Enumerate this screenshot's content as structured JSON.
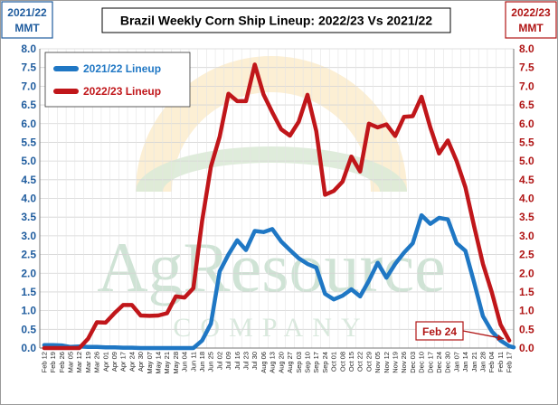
{
  "chart_data": {
    "type": "line",
    "title": "Brazil Weekly Corn Ship Lineup: 2022/23 Vs 2021/22",
    "left_axis_unit": [
      "2021/22",
      "MMT"
    ],
    "right_axis_unit": [
      "2022/23",
      "MMT"
    ],
    "ylim": [
      0,
      8
    ],
    "yticks": [
      "0.0",
      "0.5",
      "1.0",
      "1.5",
      "2.0",
      "2.5",
      "3.0",
      "3.5",
      "4.0",
      "4.5",
      "5.0",
      "5.5",
      "6.0",
      "6.5",
      "7.0",
      "7.5",
      "8.0"
    ],
    "categories": [
      "Feb 12",
      "Feb 19",
      "Feb 26",
      "Mar 05",
      "Mar 12",
      "Mar 19",
      "Mar 26",
      "Apr 01",
      "Apr 09",
      "Apr 17",
      "Apr 24",
      "Apr 30",
      "May 07",
      "May 14",
      "May 21",
      "May 28",
      "Jun 04",
      "Jun 11",
      "Jun 18",
      "Jun 25",
      "Jul 02",
      "Jul 09",
      "Jul 16",
      "Jul 23",
      "Jul 30",
      "Aug 06",
      "Aug 13",
      "Aug 20",
      "Aug 27",
      "Sep 03",
      "Sep 10",
      "Sep 17",
      "Sep 24",
      "Oct 01",
      "Oct 08",
      "Oct 15",
      "Oct 22",
      "Oct 29",
      "Nov 05",
      "Nov 12",
      "Nov 19",
      "Nov 26",
      "Dec 03",
      "Dec 10",
      "Dec 17",
      "Dec 24",
      "Dec 30",
      "Jan 07",
      "Jan 14",
      "Jan 21",
      "Jan 28",
      "Feb 04",
      "Feb 11",
      "Feb 17"
    ],
    "series": [
      {
        "name": "2021/22 Lineup",
        "color": "#1f77c4",
        "values": [
          0.08,
          0.08,
          0.07,
          0.03,
          0.04,
          0.03,
          0.03,
          0.02,
          0.02,
          0.01,
          0.01,
          0.0,
          0.0,
          0.0,
          0.0,
          0.0,
          0.0,
          0.0,
          0.2,
          0.65,
          2.05,
          2.5,
          2.88,
          2.62,
          3.13,
          3.1,
          3.18,
          2.85,
          2.62,
          2.4,
          2.25,
          2.15,
          1.45,
          1.3,
          1.4,
          1.57,
          1.38,
          1.8,
          2.28,
          1.88,
          2.25,
          2.55,
          2.8,
          3.55,
          3.32,
          3.48,
          3.44,
          2.8,
          2.6,
          1.75,
          0.85,
          0.45,
          0.2,
          0.05
        ],
        "extra_points": [
          0.02
        ]
      },
      {
        "name": "2022/23 Lineup",
        "color": "#c0161a",
        "values": [
          0.0,
          0.0,
          0.0,
          0.0,
          0.0,
          0.25,
          0.69,
          0.68,
          0.93,
          1.15,
          1.15,
          0.87,
          0.86,
          0.87,
          0.93,
          1.38,
          1.35,
          1.6,
          3.4,
          4.85,
          5.65,
          6.8,
          6.6,
          6.6,
          7.58,
          6.78,
          6.3,
          5.85,
          5.68,
          6.05,
          6.77,
          5.8,
          4.1,
          4.2,
          4.45,
          5.12,
          4.72,
          6.0,
          5.9,
          5.98,
          5.67,
          6.18,
          6.2,
          6.72,
          5.9,
          5.2,
          5.55,
          5.0,
          4.3,
          3.25,
          2.25,
          1.5,
          0.63,
          0.2
        ]
      }
    ],
    "annotation": {
      "label": "Feb 24",
      "color": "#b01515"
    },
    "watermark": {
      "line1": "AgResource",
      "line2": "COMPANY"
    },
    "grid": true,
    "legend_position": "top-left"
  }
}
